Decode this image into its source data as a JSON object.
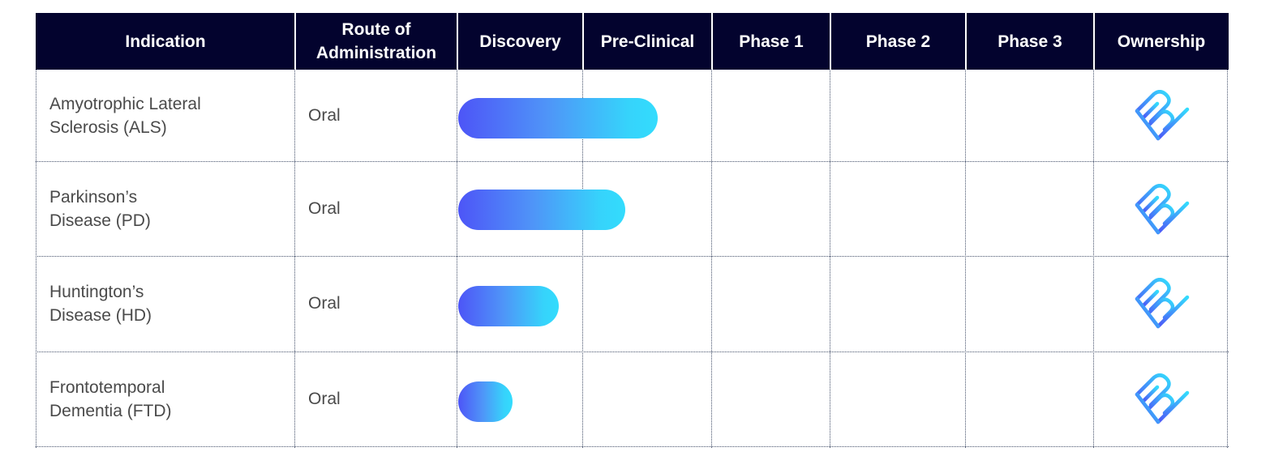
{
  "table": {
    "headers": {
      "indication": "Indication",
      "route": "Route of\nAdministration",
      "discovery": "Discovery",
      "preclinical": "Pre-Clinical",
      "phase1": "Phase 1",
      "phase2": "Phase 2",
      "phase3": "Phase 3",
      "ownership": "Ownership"
    },
    "rows": [
      {
        "indication": "Amyotrophic Lateral\nSclerosis (ALS)",
        "route": "Oral",
        "ownership_logo": "company-logo-icon"
      },
      {
        "indication": "Parkinson’s\nDisease (PD)",
        "route": "Oral",
        "ownership_logo": "company-logo-icon"
      },
      {
        "indication": "Huntington’s\nDisease (HD)",
        "route": "Oral",
        "ownership_logo": "company-logo-icon"
      },
      {
        "indication": "Frontotemporal\nDementia (FTD)",
        "route": "Oral",
        "ownership_logo": "company-logo-icon"
      }
    ]
  },
  "colors": {
    "header_bg": "#03032e",
    "header_text": "#ffffff",
    "bar_gradient_start": "#4d55f7",
    "bar_gradient_end": "#33dcfd",
    "body_text": "#4a4a4a"
  },
  "chart_data": {
    "type": "bar",
    "orientation": "horizontal",
    "stages": [
      "Discovery",
      "Pre-Clinical",
      "Phase 1",
      "Phase 2",
      "Phase 3"
    ],
    "categories": [
      "Amyotrophic Lateral Sclerosis (ALS)",
      "Parkinson’s Disease (PD)",
      "Huntington’s Disease (HD)",
      "Frontotemporal Dementia (FTD)"
    ],
    "values": [
      1.59,
      1.33,
      0.8,
      0.43
    ],
    "value_unit": "stage progress (1.0 = end of Discovery column)"
  }
}
